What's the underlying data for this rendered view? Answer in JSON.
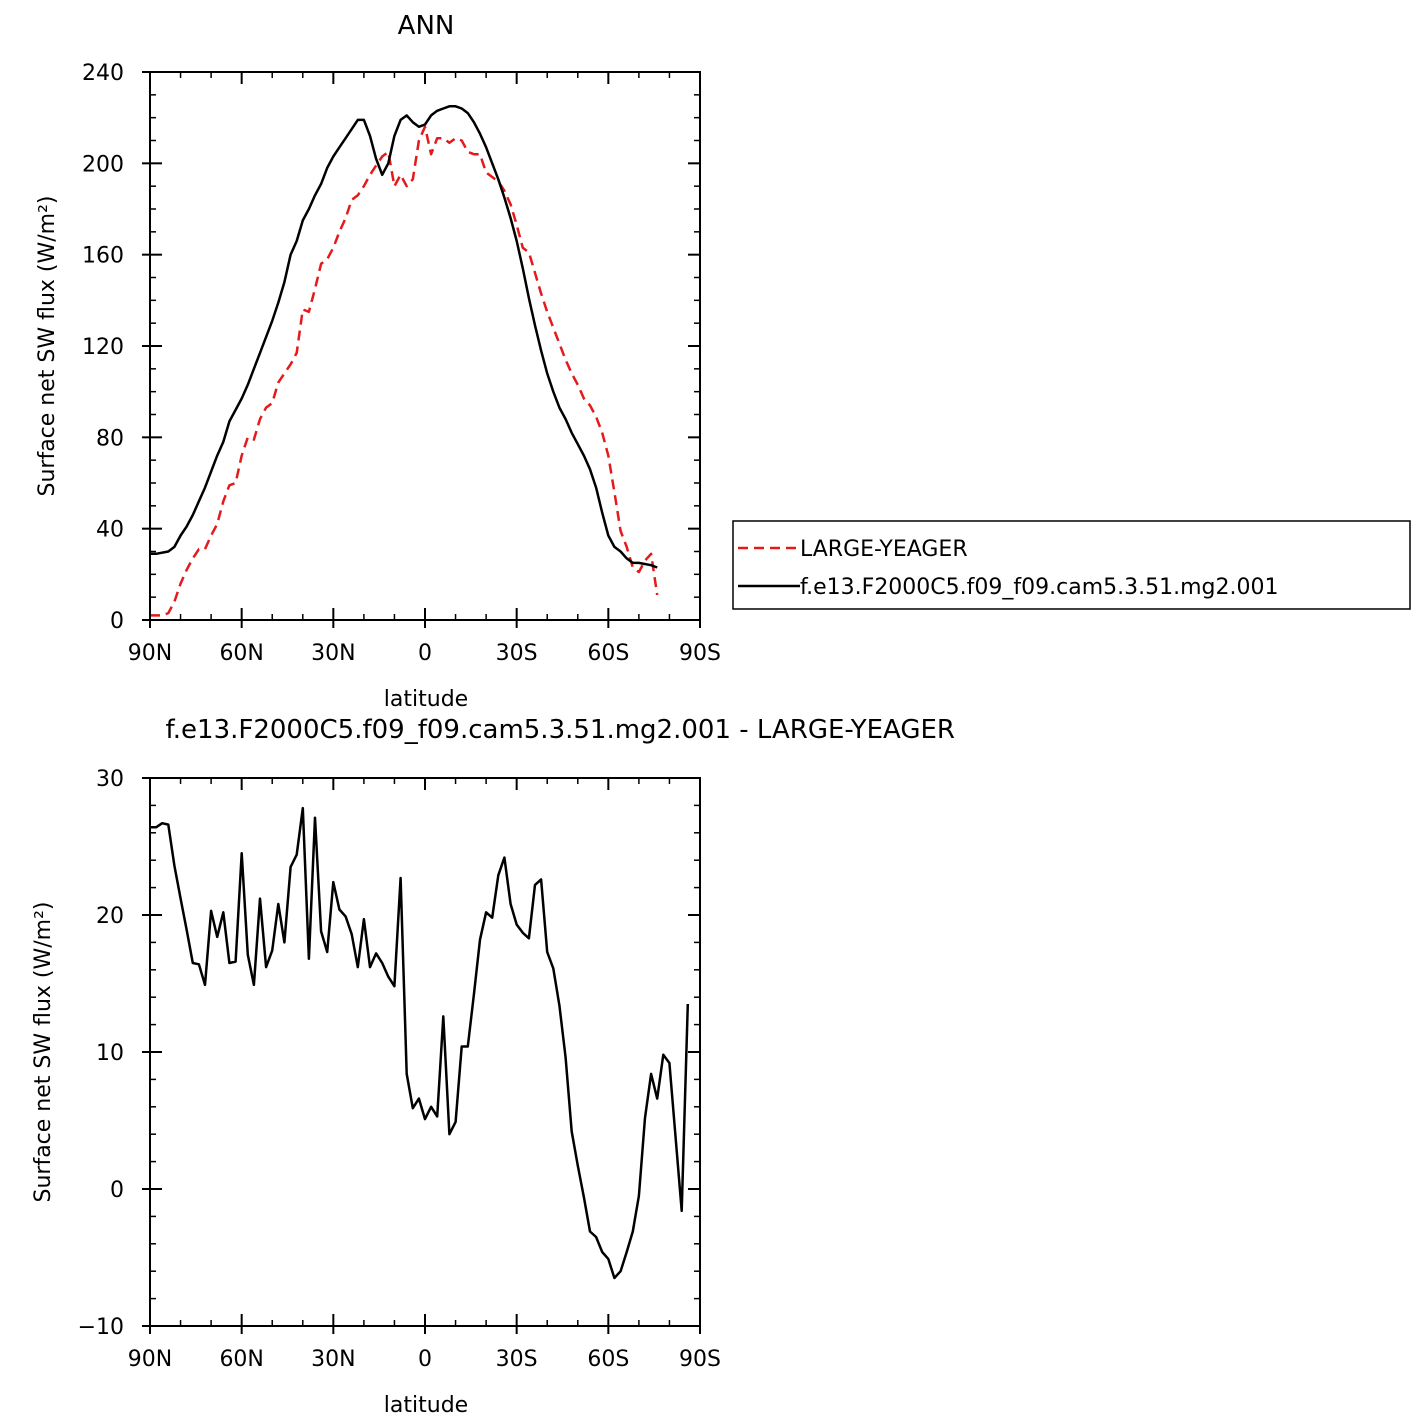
{
  "chart_data": [
    {
      "type": "line",
      "title": "ANN",
      "xlabel": "latitude",
      "ylabel": "Surface net SW flux (W/m²)",
      "xlim": [
        -90,
        90
      ],
      "ylim": [
        0,
        240
      ],
      "x_ticks": [
        {
          "value": -90,
          "label": "90N"
        },
        {
          "value": -60,
          "label": "60N"
        },
        {
          "value": -30,
          "label": "30N"
        },
        {
          "value": 0,
          "label": "0"
        },
        {
          "value": 30,
          "label": "30S"
        },
        {
          "value": 60,
          "label": "60S"
        },
        {
          "value": 90,
          "label": "90S"
        }
      ],
      "y_ticks": [
        {
          "value": 0,
          "label": "0"
        },
        {
          "value": 40,
          "label": "40"
        },
        {
          "value": 80,
          "label": "80"
        },
        {
          "value": 120,
          "label": "120"
        },
        {
          "value": 160,
          "label": "160"
        },
        {
          "value": 200,
          "label": "200"
        },
        {
          "value": 240,
          "label": "240"
        }
      ],
      "legend_position": "right",
      "series": [
        {
          "name": "LARGE-YEAGER",
          "color": "#e41a1c",
          "style": "dashed",
          "points": [
            [
              -90,
              2
            ],
            [
              -86,
              2
            ],
            [
              -84,
              3
            ],
            [
              -82,
              8
            ],
            [
              -80,
              16
            ],
            [
              -78,
              22
            ],
            [
              -76,
              27
            ],
            [
              -74,
              31
            ],
            [
              -72,
              31
            ],
            [
              -70,
              37
            ],
            [
              -68,
              42
            ],
            [
              -66,
              52
            ],
            [
              -64,
              59
            ],
            [
              -62,
              60
            ],
            [
              -60,
              72
            ],
            [
              -58,
              80
            ],
            [
              -56,
              79
            ],
            [
              -54,
              88
            ],
            [
              -52,
              93
            ],
            [
              -50,
              95
            ],
            [
              -48,
              104
            ],
            [
              -46,
              108
            ],
            [
              -44,
              112
            ],
            [
              -42,
              117
            ],
            [
              -40,
              136
            ],
            [
              -38,
              135
            ],
            [
              -36,
              145
            ],
            [
              -34,
              156
            ],
            [
              -32,
              158
            ],
            [
              -30,
              163
            ],
            [
              -28,
              170
            ],
            [
              -26,
              176
            ],
            [
              -24,
              184
            ],
            [
              -22,
              186
            ],
            [
              -20,
              190
            ],
            [
              -18,
              195
            ],
            [
              -16,
              199
            ],
            [
              -14,
              203
            ],
            [
              -12,
              205
            ],
            [
              -10,
              190
            ],
            [
              -8,
              195
            ],
            [
              -6,
              190
            ],
            [
              -4,
              193
            ],
            [
              -2,
              210
            ],
            [
              0,
              216
            ],
            [
              2,
              204
            ],
            [
              4,
              211
            ],
            [
              6,
              211
            ],
            [
              8,
              209
            ],
            [
              10,
              211
            ],
            [
              12,
              210
            ],
            [
              14,
              205
            ],
            [
              16,
              204
            ],
            [
              18,
              204
            ],
            [
              20,
              196
            ],
            [
              22,
              194
            ],
            [
              24,
              192
            ],
            [
              26,
              188
            ],
            [
              28,
              182
            ],
            [
              30,
              173
            ],
            [
              32,
              163
            ],
            [
              34,
              161
            ],
            [
              36,
              152
            ],
            [
              38,
              143
            ],
            [
              40,
              135
            ],
            [
              42,
              128
            ],
            [
              44,
              121
            ],
            [
              46,
              114
            ],
            [
              48,
              108
            ],
            [
              50,
              103
            ],
            [
              52,
              97
            ],
            [
              54,
              94
            ],
            [
              56,
              89
            ],
            [
              58,
              82
            ],
            [
              60,
              72
            ],
            [
              62,
              56
            ],
            [
              64,
              39
            ],
            [
              66,
              32
            ],
            [
              68,
              23
            ],
            [
              70,
              21
            ],
            [
              72,
              26
            ],
            [
              74,
              29
            ],
            [
              76,
              11
            ]
          ]
        },
        {
          "name": "f.e13.F2000C5.f09_f09.cam5.3.51.mg2.001",
          "color": "#000000",
          "style": "solid",
          "points": [
            [
              -90,
              29
            ],
            [
              -88,
              29
            ],
            [
              -84,
              30
            ],
            [
              -82,
              32
            ],
            [
              -80,
              37
            ],
            [
              -78,
              41
            ],
            [
              -76,
              46
            ],
            [
              -74,
              52
            ],
            [
              -72,
              58
            ],
            [
              -70,
              65
            ],
            [
              -68,
              72
            ],
            [
              -66,
              78
            ],
            [
              -64,
              87
            ],
            [
              -62,
              92
            ],
            [
              -60,
              97
            ],
            [
              -58,
              103
            ],
            [
              -56,
              110
            ],
            [
              -54,
              117
            ],
            [
              -52,
              124
            ],
            [
              -50,
              131
            ],
            [
              -48,
              139
            ],
            [
              -46,
              148
            ],
            [
              -44,
              160
            ],
            [
              -42,
              166
            ],
            [
              -40,
              175
            ],
            [
              -38,
              180
            ],
            [
              -36,
              186
            ],
            [
              -34,
              191
            ],
            [
              -32,
              198
            ],
            [
              -30,
              203
            ],
            [
              -28,
              207
            ],
            [
              -26,
              211
            ],
            [
              -24,
              215
            ],
            [
              -22,
              219
            ],
            [
              -20,
              219
            ],
            [
              -18,
              212
            ],
            [
              -16,
              202
            ],
            [
              -14,
              195
            ],
            [
              -12,
              200
            ],
            [
              -10,
              212
            ],
            [
              -8,
              219
            ],
            [
              -6,
              221
            ],
            [
              -4,
              218
            ],
            [
              -2,
              216
            ],
            [
              0,
              217
            ],
            [
              2,
              221
            ],
            [
              4,
              223
            ],
            [
              6,
              224
            ],
            [
              8,
              225
            ],
            [
              10,
              225
            ],
            [
              12,
              224
            ],
            [
              14,
              222
            ],
            [
              16,
              218
            ],
            [
              18,
              213
            ],
            [
              20,
              207
            ],
            [
              22,
              200
            ],
            [
              24,
              193
            ],
            [
              26,
              185
            ],
            [
              28,
              176
            ],
            [
              30,
              166
            ],
            [
              32,
              154
            ],
            [
              34,
              141
            ],
            [
              36,
              129
            ],
            [
              38,
              118
            ],
            [
              40,
              108
            ],
            [
              42,
              100
            ],
            [
              44,
              93
            ],
            [
              46,
              88
            ],
            [
              48,
              82
            ],
            [
              50,
              77
            ],
            [
              52,
              72
            ],
            [
              54,
              66
            ],
            [
              56,
              58
            ],
            [
              58,
              47
            ],
            [
              60,
              37
            ],
            [
              62,
              32
            ],
            [
              64,
              30
            ],
            [
              66,
              27
            ],
            [
              68,
              25
            ],
            [
              70,
              25
            ],
            [
              74,
              24
            ],
            [
              76,
              23
            ]
          ]
        }
      ]
    },
    {
      "type": "line",
      "title": "f.e13.F2000C5.f09_f09.cam5.3.51.mg2.001 - LARGE-YEAGER",
      "xlabel": "latitude",
      "ylabel": "Surface net SW flux (W/m²)",
      "xlim": [
        -90,
        90
      ],
      "ylim": [
        -10,
        30
      ],
      "x_ticks": [
        {
          "value": -90,
          "label": "90N"
        },
        {
          "value": -60,
          "label": "60N"
        },
        {
          "value": -30,
          "label": "30N"
        },
        {
          "value": 0,
          "label": "0"
        },
        {
          "value": 30,
          "label": "30S"
        },
        {
          "value": 60,
          "label": "60S"
        },
        {
          "value": 90,
          "label": "90S"
        }
      ],
      "y_ticks": [
        {
          "value": -10,
          "label": "−10"
        },
        {
          "value": 0,
          "label": "0"
        },
        {
          "value": 10,
          "label": "10"
        },
        {
          "value": 20,
          "label": "20"
        },
        {
          "value": 30,
          "label": "30"
        }
      ],
      "series": [
        {
          "color": "#000000",
          "style": "solid",
          "points": [
            [
              -90,
              26.4
            ],
            [
              -88,
              26.4
            ],
            [
              -86,
              26.7
            ],
            [
              -84,
              26.6
            ],
            [
              -82,
              23.6
            ],
            [
              -80,
              21.2
            ],
            [
              -78,
              18.9
            ],
            [
              -76,
              16.5
            ],
            [
              -74,
              16.4
            ],
            [
              -72,
              14.9
            ],
            [
              -70,
              20.3
            ],
            [
              -68,
              18.4
            ],
            [
              -66,
              20.2
            ],
            [
              -64,
              16.5
            ],
            [
              -62,
              16.6
            ],
            [
              -60,
              24.5
            ],
            [
              -58,
              17.1
            ],
            [
              -56,
              14.9
            ],
            [
              -54,
              21.2
            ],
            [
              -52,
              16.2
            ],
            [
              -50,
              17.4
            ],
            [
              -48,
              20.8
            ],
            [
              -46,
              18.0
            ],
            [
              -44,
              23.5
            ],
            [
              -42,
              24.4
            ],
            [
              -40,
              27.8
            ],
            [
              -38,
              16.8
            ],
            [
              -36,
              27.1
            ],
            [
              -34,
              18.8
            ],
            [
              -32,
              17.3
            ],
            [
              -30,
              22.4
            ],
            [
              -28,
              20.4
            ],
            [
              -26,
              19.9
            ],
            [
              -24,
              18.6
            ],
            [
              -22,
              16.2
            ],
            [
              -20,
              19.7
            ],
            [
              -18,
              16.2
            ],
            [
              -16,
              17.2
            ],
            [
              -14,
              16.5
            ],
            [
              -12,
              15.5
            ],
            [
              -10,
              14.8
            ],
            [
              -8,
              22.7
            ],
            [
              -6,
              8.4
            ],
            [
              -4,
              5.9
            ],
            [
              -2,
              6.6
            ],
            [
              0,
              5.1
            ],
            [
              2,
              6.0
            ],
            [
              4,
              5.3
            ],
            [
              6,
              12.6
            ],
            [
              8,
              4.0
            ],
            [
              10,
              4.9
            ],
            [
              12,
              10.4
            ],
            [
              14,
              10.4
            ],
            [
              16,
              14.2
            ],
            [
              18,
              18.2
            ],
            [
              20,
              20.2
            ],
            [
              22,
              19.8
            ],
            [
              24,
              22.9
            ],
            [
              26,
              24.2
            ],
            [
              28,
              20.8
            ],
            [
              30,
              19.3
            ],
            [
              32,
              18.7
            ],
            [
              34,
              18.3
            ],
            [
              36,
              22.2
            ],
            [
              38,
              22.6
            ],
            [
              40,
              17.3
            ],
            [
              42,
              16.1
            ],
            [
              44,
              13.4
            ],
            [
              46,
              9.6
            ],
            [
              48,
              4.2
            ],
            [
              50,
              1.7
            ],
            [
              52,
              -0.6
            ],
            [
              54,
              -3.1
            ],
            [
              56,
              -3.5
            ],
            [
              58,
              -4.6
            ],
            [
              60,
              -5.1
            ],
            [
              62,
              -6.5
            ],
            [
              64,
              -6.0
            ],
            [
              66,
              -4.6
            ],
            [
              68,
              -3.1
            ],
            [
              70,
              -0.5
            ],
            [
              72,
              5.2
            ],
            [
              74,
              8.4
            ],
            [
              76,
              6.6
            ],
            [
              78,
              9.8
            ],
            [
              80,
              9.2
            ],
            [
              84,
              -1.6
            ],
            [
              86,
              13.5
            ]
          ]
        }
      ]
    }
  ]
}
